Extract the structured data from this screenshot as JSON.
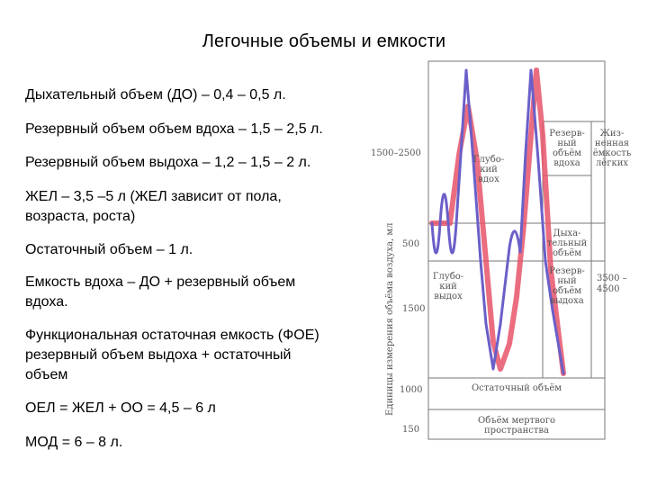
{
  "slide": {
    "title": "Легочные объемы и емкости"
  },
  "lines": [
    {
      "text": "Дыхательный объем (ДО) – 0,4 – 0,5 л."
    },
    {
      "text": "Резервный объем объем вдоха – 1,5 – 2,5 л."
    },
    {
      "text": "Резервный объем выдоха – 1,2 – 1,5 – 2 л."
    },
    {
      "text": "ЖЕЛ – 3,5 –5 л (ЖЕЛ зависит от пола,"
    },
    {
      "text": "возраста, роста)"
    },
    {
      "text": "Остаточный объем – 1 л."
    },
    {
      "text": "Емкость вдоха – ДО + резервный объем"
    },
    {
      "text": "вдоха."
    },
    {
      "text": "Функциональная остаточная емкость (ФОЕ)"
    },
    {
      "text": "резервный объем выдоха + остаточный"
    },
    {
      "text": "объем"
    },
    {
      "text": "ОЕЛ = ЖЕЛ + ОО = 4,5 – 6 л"
    },
    {
      "text": "МОД = 6 – 8 л."
    }
  ],
  "diagram": {
    "axis_label": "Единицы измерения объёма воздуха, мл",
    "scale": {
      "a": "1500–2500",
      "b": "500",
      "c": "1500",
      "d": "1000",
      "e": "150"
    },
    "labels": {
      "deep_in": [
        "Глубо-",
        "кий",
        "вдох"
      ],
      "deep_out": [
        "Глубо-",
        "кий",
        "выдох"
      ],
      "reserve_in": [
        "Резерв-",
        "ный",
        "объём",
        "вдоха"
      ],
      "tidal": [
        "Дыха-",
        "тельный",
        "объём"
      ],
      "reserve_out": [
        "Резерв-",
        "ный",
        "объём",
        "выдоха"
      ],
      "vital": [
        "Жиз-",
        "ненная",
        "ёмкость",
        "лёгких"
      ],
      "vital_values": [
        "3500 –",
        "4500"
      ],
      "residual": "Остаточный объём",
      "dead_space": [
        "Объём мертвого",
        "пространства"
      ]
    },
    "colors": {
      "red": "#e8536a",
      "blue": "#6a5fc8"
    }
  }
}
